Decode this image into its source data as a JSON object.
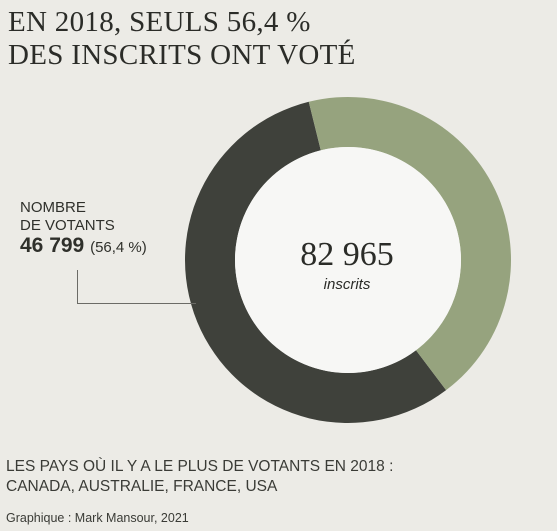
{
  "title": {
    "line1": "EN 2018, SEULS 56,4 %",
    "line2": "DES INSCRITS ONT VOTÉ"
  },
  "chart_data": {
    "type": "pie",
    "title": "EN 2018, SEULS 56,4 % DES INSCRITS ONT VOTÉ",
    "total": 82965,
    "slices": [
      {
        "label": "NOMBRE DE VOTANTS",
        "value": 46799,
        "percent": 56.4,
        "color": "#3f413b"
      },
      {
        "label": "",
        "value": 36166,
        "percent": 43.6,
        "color": "#96a37e"
      }
    ]
  },
  "voters": {
    "line1": "NOMBRE",
    "line2": "DE VOTANTS",
    "value": "46 799",
    "percent": "(56,4 %)"
  },
  "center": {
    "number": "82 965",
    "label": "inscrits"
  },
  "note": {
    "line1": "LES PAYS OÙ IL Y A LE PLUS DE VOTANTS EN 2018 :",
    "line2": "CANADA, AUSTRALIE, FRANCE, USA"
  },
  "credit": "Graphique : Mark Mansour, 2021"
}
